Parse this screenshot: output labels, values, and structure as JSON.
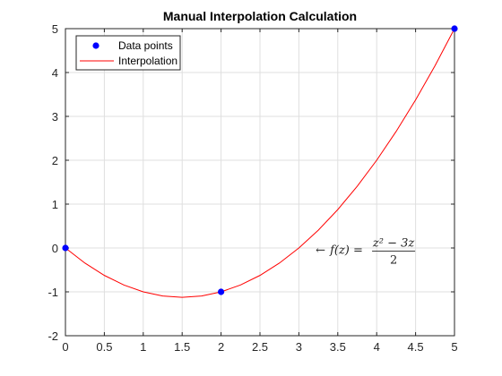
{
  "chart_data": {
    "type": "line",
    "title": "Manual Interpolation Calculation",
    "xlabel": "",
    "ylabel": "",
    "xlim": [
      0,
      5
    ],
    "ylim": [
      -2,
      5
    ],
    "xticks": [
      0,
      0.5,
      1,
      1.5,
      2,
      2.5,
      3,
      3.5,
      4,
      4.5,
      5
    ],
    "yticks": [
      -2,
      -1,
      0,
      1,
      2,
      3,
      4,
      5
    ],
    "grid": true,
    "legend_position": "top-left",
    "series": [
      {
        "name": "Data points",
        "kind": "scatter",
        "color": "#0000ff",
        "x": [
          0,
          2,
          5
        ],
        "y": [
          0,
          -1,
          5
        ]
      },
      {
        "name": "Interpolation",
        "kind": "line",
        "color": "#ff0000",
        "x": [
          0,
          0.25,
          0.5,
          0.75,
          1,
          1.25,
          1.5,
          1.75,
          2,
          2.25,
          2.5,
          2.75,
          3,
          3.25,
          3.5,
          3.75,
          4,
          4.25,
          4.5,
          4.75,
          5
        ],
        "y": [
          0,
          -0.34375,
          -0.625,
          -0.84375,
          -1,
          -1.09375,
          -1.125,
          -1.09375,
          -1,
          -0.84375,
          -0.625,
          -0.34375,
          0,
          0.40625,
          0.875,
          1.40625,
          2,
          2.65625,
          3.375,
          4.15625,
          5
        ]
      }
    ],
    "annotation": {
      "arrow": "←",
      "lhs": "f(z) =",
      "numerator": "z² − 3z",
      "denominator": "2",
      "x": 3.1,
      "y": -0.05
    }
  }
}
